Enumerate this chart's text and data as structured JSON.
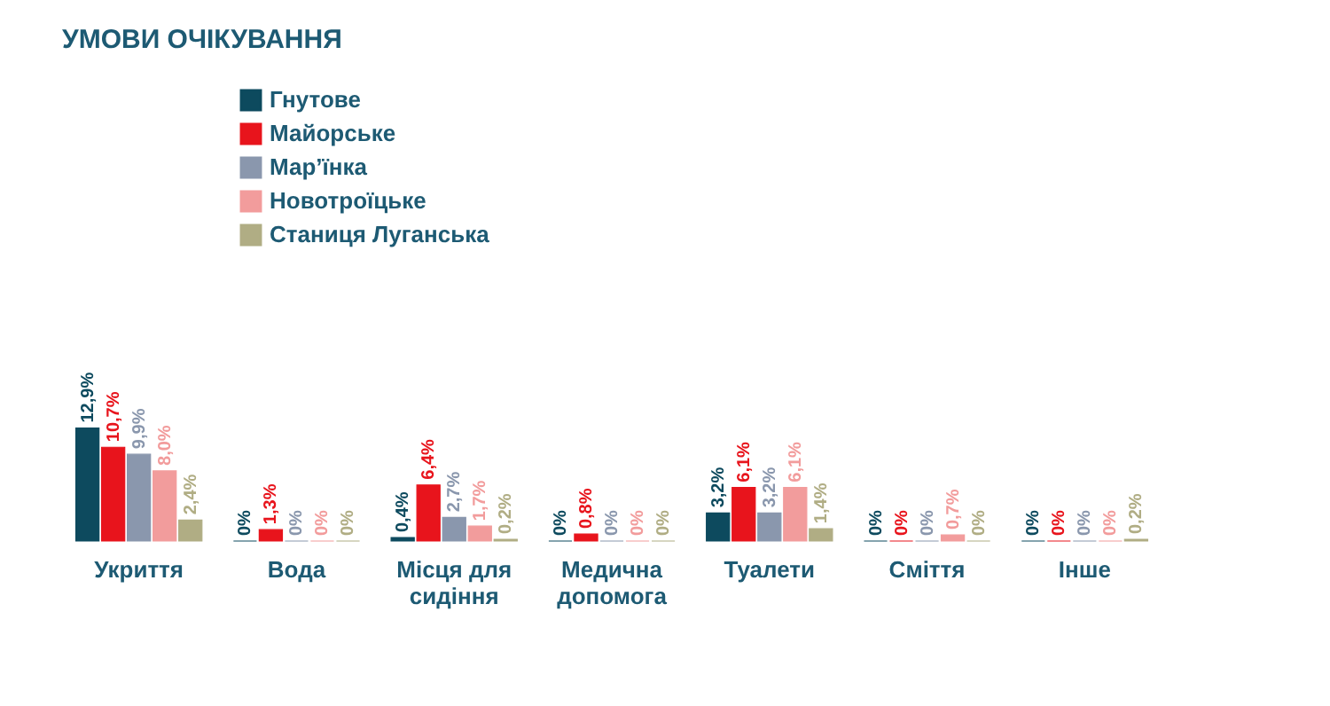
{
  "chart_data": {
    "type": "bar",
    "title": "УМОВИ ОЧІКУВАННЯ",
    "categories": [
      "Укриття",
      "Вода",
      "Місця для сидіння",
      "Медична допомога",
      "Туалети",
      "Сміття",
      "Інше"
    ],
    "series": [
      {
        "name": "Гнутове",
        "color": "#0d4a5e",
        "values": [
          12.9,
          0,
          0.4,
          0,
          3.2,
          0,
          0
        ],
        "value_labels": [
          "12,9%",
          "0%",
          "0,4%",
          "0%",
          "3,2%",
          "0%",
          "0%"
        ]
      },
      {
        "name": "Майорське",
        "color": "#e8141c",
        "values": [
          10.7,
          1.3,
          6.4,
          0.8,
          6.1,
          0,
          0
        ],
        "value_labels": [
          "10,7%",
          "1,3%",
          "6,4%",
          "0,8%",
          "6,1%",
          "0%",
          "0%"
        ]
      },
      {
        "name": "Мар’їнка",
        "color": "#8a97ad",
        "values": [
          9.9,
          0,
          2.7,
          0,
          3.2,
          0,
          0
        ],
        "value_labels": [
          "9,9%",
          "0%",
          "2,7%",
          "0%",
          "3,2%",
          "0%",
          "0%"
        ]
      },
      {
        "name": "Новотроїцьке",
        "color": "#f29c9c",
        "values": [
          8.0,
          0,
          1.7,
          0,
          6.1,
          0.7,
          0
        ],
        "value_labels": [
          "8,0%",
          "0%",
          "1,7%",
          "0%",
          "6,1%",
          "0,7%",
          "0%"
        ]
      },
      {
        "name": "Станиця Луганська",
        "color": "#b0ad84",
        "values": [
          2.4,
          0,
          0.2,
          0,
          1.4,
          0,
          0.2
        ],
        "value_labels": [
          "2,4%",
          "0%",
          "0,2%",
          "0%",
          "1,4%",
          "0%",
          "0,2%"
        ]
      }
    ],
    "legend": "top left",
    "grid": false
  }
}
